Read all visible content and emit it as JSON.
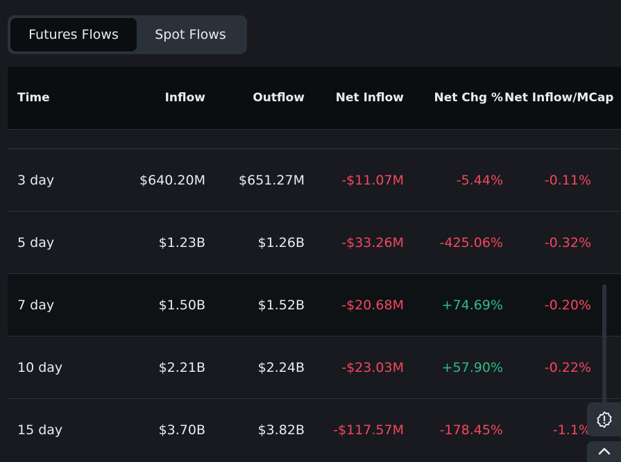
{
  "tabs": [
    {
      "label": "Futures Flows",
      "active": true
    },
    {
      "label": "Spot Flows",
      "active": false
    }
  ],
  "columns": [
    "Time",
    "Inflow",
    "Outflow",
    "Net Inflow",
    "Net Chg %",
    "Net Inflow/MCap"
  ],
  "rows": [
    {
      "time": "3 day",
      "inflow": "$640.20M",
      "outflow": "$651.27M",
      "net_inflow": "-$11.07M",
      "net_chg": "-5.44%",
      "net_mcap": "-0.11%"
    },
    {
      "time": "5 day",
      "inflow": "$1.23B",
      "outflow": "$1.26B",
      "net_inflow": "-$33.26M",
      "net_chg": "-425.06%",
      "net_mcap": "-0.32%"
    },
    {
      "time": "7 day",
      "inflow": "$1.50B",
      "outflow": "$1.52B",
      "net_inflow": "-$20.68M",
      "net_chg": "+74.69%",
      "net_mcap": "-0.20%"
    },
    {
      "time": "10 day",
      "inflow": "$2.21B",
      "outflow": "$2.24B",
      "net_inflow": "-$23.03M",
      "net_chg": "+57.90%",
      "net_mcap": "-0.22%"
    },
    {
      "time": "15 day",
      "inflow": "$3.70B",
      "outflow": "$3.82B",
      "net_inflow": "-$117.57M",
      "net_chg": "-178.45%",
      "net_mcap": "-1.1%"
    }
  ],
  "colors": {
    "negative": "#f6465d",
    "positive": "#2ebd85",
    "background": "#181a20"
  },
  "icons": {
    "feedback": "alert-badge-icon",
    "scroll_top": "chevron-up-icon"
  }
}
